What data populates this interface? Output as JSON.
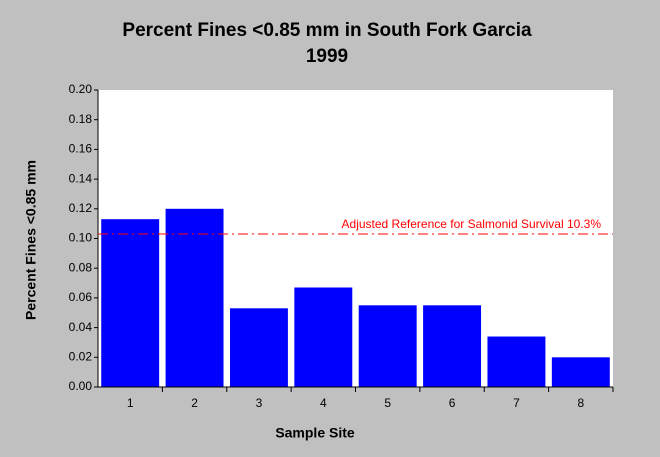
{
  "chart_data": {
    "type": "bar",
    "title": "Percent Fines <0.85 mm in South Fork Garcia",
    "subtitle": "1999",
    "x_label": "Sample Site",
    "y_label": "Percent Fines <0.85 mm",
    "categories": [
      "1",
      "2",
      "3",
      "4",
      "5",
      "6",
      "7",
      "8"
    ],
    "values": [
      0.113,
      0.12,
      0.053,
      0.067,
      0.055,
      0.055,
      0.034,
      0.02
    ],
    "color": "#0000ff",
    "ylim": [
      0,
      0.2
    ],
    "yticks": [
      {
        "value": 0,
        "label": "0.00"
      },
      {
        "value": 0.02,
        "label": "0.02"
      },
      {
        "value": 0.04,
        "label": "0.04"
      },
      {
        "value": 0.06,
        "label": "0.06"
      },
      {
        "value": 0.08,
        "label": "0.08"
      },
      {
        "value": 0.1,
        "label": "0.10"
      },
      {
        "value": 0.12,
        "label": "0.12"
      },
      {
        "value": 0.14,
        "label": "0.14"
      },
      {
        "value": 0.16,
        "label": "0.16"
      },
      {
        "value": 0.18,
        "label": "0.18"
      },
      {
        "value": 0.2,
        "label": "0.20"
      }
    ],
    "grid": false,
    "reference_line": {
      "value": 0.103,
      "label": "Adjusted Reference for Salmonid Survival 10.3%",
      "color": "#ff0000"
    }
  }
}
